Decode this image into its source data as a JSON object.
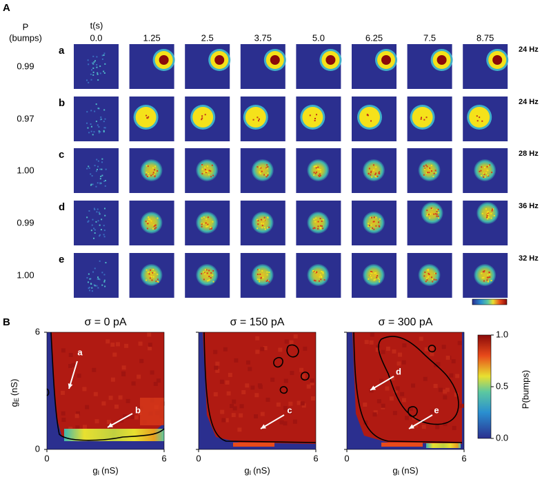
{
  "panel_a": {
    "label": "A",
    "p_header": [
      "P",
      "(bumps)"
    ],
    "time_header": "t(s)",
    "times": [
      "0.0",
      "1.25",
      "2.5",
      "3.75",
      "5.0",
      "6.25",
      "7.5",
      "8.75"
    ],
    "rows": [
      {
        "letter": "a",
        "p": "0.99",
        "rate": "24 Hz"
      },
      {
        "letter": "b",
        "p": "0.97",
        "rate": "24 Hz"
      },
      {
        "letter": "c",
        "p": "1.00",
        "rate": "28 Hz"
      },
      {
        "letter": "d",
        "p": "0.99",
        "rate": "36 Hz"
      },
      {
        "letter": "e",
        "p": "1.00",
        "rate": "32 Hz"
      }
    ]
  },
  "panel_b": {
    "label": "B",
    "x_label": {
      "symbol": "g",
      "sub": "I",
      "unit": "(nS)"
    },
    "y_label": {
      "symbol": "g",
      "sub": "E",
      "unit": "(nS)"
    },
    "xlim": [
      0,
      6
    ],
    "ylim": [
      0,
      6
    ],
    "xticks": [
      0,
      6
    ],
    "yticks": [
      0,
      6
    ],
    "plots": [
      {
        "title": "σ = 0 pA",
        "annotations": [
          "a",
          "b"
        ]
      },
      {
        "title": "σ = 150 pA",
        "annotations": [
          "c"
        ]
      },
      {
        "title": "σ = 300 pA",
        "annotations": [
          "d",
          "e"
        ]
      }
    ],
    "colorbar": {
      "label": "P(bumps)",
      "lim": [
        0,
        1
      ],
      "ticks": [
        {
          "value": 1,
          "label": "1.0"
        },
        {
          "value": 0.5,
          "label": "0.5"
        },
        {
          "value": 0,
          "label": "0.0"
        }
      ]
    }
  }
}
